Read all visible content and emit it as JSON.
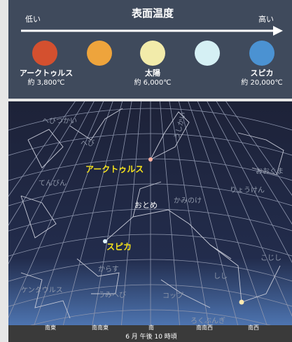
{
  "header": {
    "title": "表面温度",
    "low": "低い",
    "high": "高い"
  },
  "stars": [
    {
      "name": "アークトゥルス",
      "temperature": "約 3,800℃"
    },
    {
      "name": "太陽",
      "temperature": "約 6,000℃"
    },
    {
      "name": "スピカ",
      "temperature": "約 20,000℃"
    }
  ],
  "sky": {
    "star_labels": [
      "アークトゥルス",
      "スピカ"
    ],
    "constellations": [
      "へびつかい",
      "へび",
      "うしかい",
      "てんびん",
      "おおぐま",
      "りょうけん",
      "おとめ",
      "かみのけ",
      "からす",
      "こじし",
      "しし",
      "ケンタウルス",
      "コップ",
      "うみへび",
      "ろくぶんぎ"
    ],
    "directions": [
      "南東",
      "南南東",
      "南",
      "南南西",
      "南西"
    ],
    "caption": "6 月 午後 10 時頃"
  }
}
